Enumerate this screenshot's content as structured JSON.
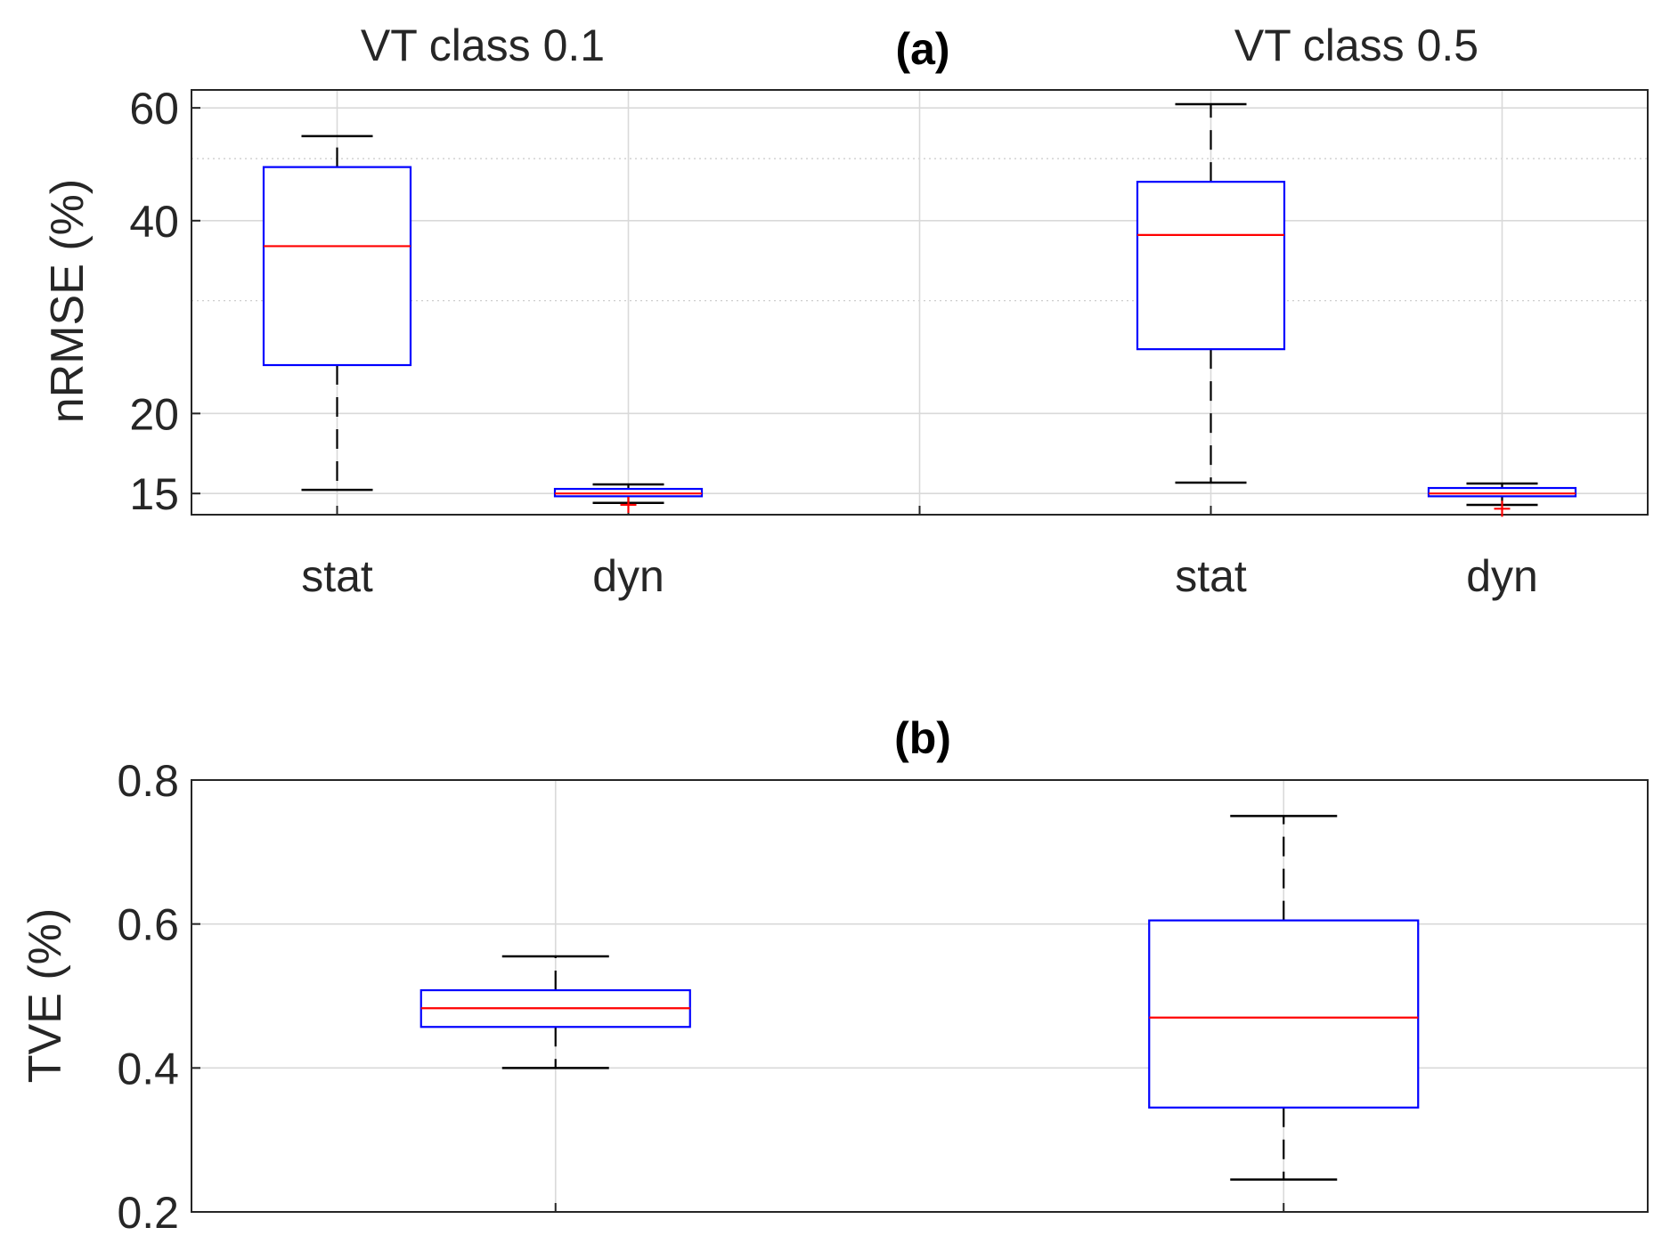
{
  "chart_data": [
    {
      "type": "box",
      "panel": "(a)",
      "title": "(a)",
      "yscale": "log",
      "ylabel": "nRMSE (%)",
      "ylim": [
        13.9,
        64
      ],
      "yticks": [
        15,
        20,
        40,
        60
      ],
      "ytick_labels": [
        "15",
        "20",
        "40",
        "60"
      ],
      "grid": "major+minor",
      "group_titles": [
        {
          "text": "VT class 0.1",
          "over": 0.5
        },
        {
          "text": "VT class 0.5",
          "over": 3.5
        }
      ],
      "categories": [
        "stat",
        "dyn",
        "",
        "stat",
        "dyn"
      ],
      "boxes": [
        {
          "label": "stat",
          "pos": 0,
          "whisker_low": 15.2,
          "q1": 23.8,
          "median": 36.5,
          "q3": 48.5,
          "whisker_high": 54.2,
          "outliers": []
        },
        {
          "label": "dyn",
          "pos": 1,
          "whisker_low": 14.5,
          "q1": 14.85,
          "median": 15.0,
          "q3": 15.25,
          "whisker_high": 15.5,
          "outliers": [
            14.4
          ]
        },
        {
          "label": "stat",
          "pos": 3,
          "whisker_low": 15.6,
          "q1": 25.2,
          "median": 38.0,
          "q3": 46.0,
          "whisker_high": 60.8,
          "outliers": []
        },
        {
          "label": "dyn",
          "pos": 4,
          "whisker_low": 14.4,
          "q1": 14.85,
          "median": 15.0,
          "q3": 15.3,
          "whisker_high": 15.55,
          "outliers": [
            14.2
          ]
        }
      ]
    },
    {
      "type": "box",
      "panel": "(b)",
      "title": "(b)",
      "yscale": "linear",
      "ylabel": "TVE (%)",
      "ylim": [
        0.2,
        0.8
      ],
      "yticks": [
        0.2,
        0.4,
        0.6,
        0.8
      ],
      "ytick_labels": [
        "0.2",
        "0.4",
        "0.6",
        "0.8"
      ],
      "grid": "major",
      "categories": [
        "",
        ""
      ],
      "boxes": [
        {
          "pos": 0,
          "whisker_low": 0.4,
          "q1": 0.457,
          "median": 0.483,
          "q3": 0.508,
          "whisker_high": 0.555,
          "outliers": []
        },
        {
          "pos": 1,
          "whisker_low": 0.245,
          "q1": 0.345,
          "median": 0.47,
          "q3": 0.605,
          "whisker_high": 0.75,
          "outliers": []
        }
      ]
    }
  ],
  "colors": {
    "box": "#0000ff",
    "median": "#ff0000",
    "whisker": "#000000",
    "outlier": "#ff0000"
  }
}
